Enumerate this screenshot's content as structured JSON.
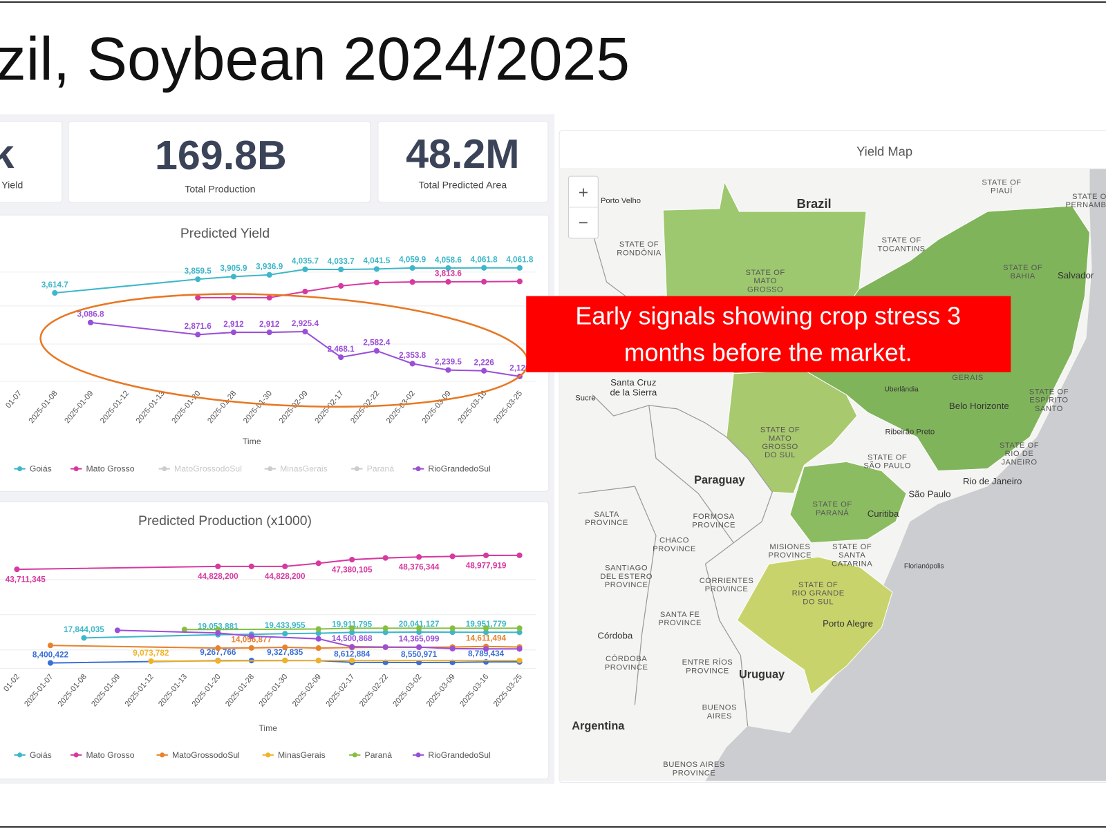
{
  "header": {
    "title": "zil, Soybean 2024/2025"
  },
  "kpis": [
    {
      "value": "k",
      "label": "l Yield"
    },
    {
      "value": "169.8B",
      "label": "Total Production"
    },
    {
      "value": "48.2M",
      "label": "Total Predicted Area"
    }
  ],
  "charts": [
    {
      "type": "line",
      "title": "Predicted Yield",
      "x_label": "Time",
      "categories": [
        "01-07",
        "2025-01-08",
        "2025-01-09",
        "2025-01-12",
        "2025-01-13",
        "2025-01-20",
        "2025-01-28",
        "2025-01-30",
        "2025-02-09",
        "2025-02-17",
        "2025-02-22",
        "2025-03-02",
        "2025-03-09",
        "2025-03-16",
        "2025-03-25"
      ],
      "ylim": [
        2000,
        4200
      ],
      "series": [
        {
          "name": "Goiás",
          "color": "#3db7c9",
          "x": [
            "2025-01-08",
            "2025-01-20",
            "2025-01-28",
            "2025-01-30",
            "2025-02-09",
            "2025-02-17",
            "2025-02-22",
            "2025-03-02",
            "2025-03-09",
            "2025-03-16",
            "2025-03-25"
          ],
          "values": [
            3614.7,
            3859.5,
            3905.9,
            3936.9,
            4035.7,
            4033.7,
            4041.5,
            4059.9,
            4058.6,
            4061.8,
            4061.8
          ],
          "value_labels": [
            "3,614.7",
            "3,859.5",
            "3,905.9",
            "3,936.9",
            "4,035.7",
            "4,033.7",
            "4,041.5",
            "4,059.9",
            "4,058.6",
            "4,061.8",
            "4,061.8"
          ]
        },
        {
          "name": "Mato Grosso",
          "color": "#d6399f",
          "x": [
            "2025-01-20",
            "2025-01-28",
            "2025-01-30",
            "2025-02-09",
            "2025-02-17",
            "2025-02-22",
            "2025-03-02",
            "2025-03-09",
            "2025-03-16",
            "2025-03-25"
          ],
          "values": [
            3530,
            3530,
            3530,
            3640,
            3740,
            3800,
            3810,
            3813.6,
            3815,
            3820
          ],
          "value_labels": [
            null,
            null,
            null,
            null,
            null,
            null,
            null,
            "3,813.6",
            null,
            null
          ]
        },
        {
          "name": "MatoGrossodoSul",
          "color": "#cccccc",
          "visible": false
        },
        {
          "name": "MinasGerais",
          "color": "#cccccc",
          "visible": false
        },
        {
          "name": "Paraná",
          "color": "#cccccc",
          "visible": false
        },
        {
          "name": "RioGrandedoSul",
          "color": "#9a4fd8",
          "x": [
            "2025-01-09",
            "2025-01-20",
            "2025-01-28",
            "2025-01-30",
            "2025-02-09",
            "2025-02-17",
            "2025-02-22",
            "2025-03-02",
            "2025-03-09",
            "2025-03-16",
            "2025-03-25"
          ],
          "values": [
            3086.8,
            2871.6,
            2912,
            2912,
            2925.4,
            2468.1,
            2582.4,
            2353.8,
            2239.5,
            2226,
            2126
          ],
          "value_labels": [
            "3,086.8",
            "2,871.6",
            "2,912",
            "2,912",
            "2,925.4",
            "2,468.1",
            "2,582.4",
            "2,353.8",
            "2,239.5",
            "2,226",
            "2,126"
          ]
        }
      ]
    },
    {
      "type": "line",
      "title": "Predicted Production (x1000)",
      "x_label": "Time",
      "categories": [
        "01-02",
        "2025-01-07",
        "2025-01-08",
        "2025-01-09",
        "2025-01-12",
        "2025-01-13",
        "2025-01-20",
        "2025-01-28",
        "2025-01-30",
        "2025-02-09",
        "2025-02-17",
        "2025-02-22",
        "2025-03-02",
        "2025-03-09",
        "2025-03-16",
        "2025-03-25"
      ],
      "ylim": [
        0,
        50000000
      ],
      "series": [
        {
          "color": "#3a6fd8",
          "x": [
            "2025-01-07",
            "2025-01-20",
            "2025-01-28",
            "2025-01-30",
            "2025-02-09",
            "2025-02-17",
            "2025-02-22",
            "2025-03-02",
            "2025-03-09",
            "2025-03-16",
            "2025-03-25"
          ],
          "values": [
            8400422,
            9267766,
            9300000,
            9327835,
            9300000,
            8612884,
            8600000,
            8550971,
            8600000,
            8789434,
            8800000
          ],
          "value_labels": [
            "8,400,422",
            "9,267,766",
            null,
            "9,327,835",
            null,
            "8,612,884",
            null,
            "8,550,971",
            null,
            "8,789,434",
            null
          ]
        },
        {
          "name": "Goiás",
          "color": "#3db7c9",
          "x": [
            "2025-01-08",
            "2025-01-20",
            "2025-01-28",
            "2025-01-30",
            "2025-02-09",
            "2025-02-17",
            "2025-02-22",
            "2025-03-02",
            "2025-03-09",
            "2025-03-16",
            "2025-03-25"
          ],
          "values": [
            17844035,
            19053881,
            19200000,
            19433955,
            19600000,
            19911795,
            19950000,
            20041127,
            20000000,
            19951779,
            19950000
          ],
          "value_labels": [
            "17,844,035",
            "19,053,881",
            null,
            "19,433,955",
            null,
            "19,911,795",
            null,
            "20,041,127",
            null,
            "19,951,779",
            null
          ]
        },
        {
          "name": "Mato Grosso",
          "color": "#d6399f",
          "label_position": "below",
          "x": [
            "01-02",
            "2025-01-20",
            "2025-01-28",
            "2025-01-30",
            "2025-02-09",
            "2025-02-17",
            "2025-02-22",
            "2025-03-02",
            "2025-03-09",
            "2025-03-16",
            "2025-03-25"
          ],
          "values": [
            43711345,
            44828200,
            44828200,
            44828200,
            46000000,
            47380105,
            48000000,
            48376344,
            48600000,
            48977919,
            49000000
          ],
          "value_labels": [
            "43,711,345",
            "44,828,200",
            null,
            "44,828,200",
            null,
            "47,380,105",
            null,
            "48,376,344",
            null,
            "48,977,919",
            null
          ]
        },
        {
          "name": "MatoGrossodoSul",
          "color": "#e8822c",
          "x": [
            "2025-01-07",
            "2025-01-20",
            "2025-01-28",
            "2025-01-30",
            "2025-02-09",
            "2025-02-17",
            "2025-02-22",
            "2025-03-02",
            "2025-03-09",
            "2025-03-16",
            "2025-03-25"
          ],
          "values": [
            15000000,
            14000000,
            14056877,
            14300000,
            14000000,
            14200000,
            14300000,
            14300000,
            14400000,
            14611494,
            14400000
          ],
          "value_labels": [
            null,
            null,
            "14,056,877",
            null,
            null,
            null,
            null,
            null,
            null,
            "14,611,494",
            null
          ]
        },
        {
          "name": "MinasGerais",
          "color": "#f2b227",
          "x": [
            "2025-01-12",
            "2025-01-20",
            "2025-01-30",
            "2025-02-09",
            "2025-02-17",
            "2025-03-25"
          ],
          "values": [
            9073782,
            9150000,
            9300000,
            9350000,
            9300000,
            9300000
          ],
          "value_labels": [
            "9,073,782",
            null,
            null,
            null,
            null,
            null
          ]
        },
        {
          "name": "Paraná",
          "color": "#86bf3f",
          "x": [
            "2025-01-13",
            "2025-01-20",
            "2025-02-09",
            "2025-02-17",
            "2025-02-22",
            "2025-03-02",
            "2025-03-09",
            "2025-03-16",
            "2025-03-25"
          ],
          "values": [
            21000000,
            21000000,
            21200000,
            21500000,
            21500000,
            21500000,
            21500000,
            21500000,
            21500000
          ]
        },
        {
          "name": "RioGrandedoSul",
          "color": "#9a4fd8",
          "x": [
            "2025-01-09",
            "2025-01-20",
            "2025-01-28",
            "2025-02-09",
            "2025-02-17",
            "2025-02-22",
            "2025-03-02",
            "2025-03-09",
            "2025-03-16",
            "2025-03-25"
          ],
          "values": [
            20700000,
            19700000,
            18500000,
            17500000,
            14500868,
            14400000,
            14365099,
            13800000,
            13700000,
            13700000
          ],
          "value_labels": [
            null,
            null,
            null,
            null,
            "14,500,868",
            null,
            "14,365,099",
            null,
            null,
            null
          ]
        }
      ]
    }
  ],
  "callout": {
    "lines": [
      "Early signals showing crop stress 3",
      "months before the market."
    ]
  },
  "map": {
    "title": "Yield Map",
    "zoom_in": "+",
    "zoom_out": "−",
    "labels": [
      [
        "Brazil"
      ],
      [
        "Porto Velho"
      ],
      [
        "STATE OF",
        "RONDÔNIA"
      ],
      [
        "STATE OF",
        "PIAUÍ"
      ],
      [
        "STATE OF",
        "PERNAMBUC"
      ],
      [
        "STATE OF",
        "TOCANTINS"
      ],
      [
        "STATE OF",
        "MATO",
        "GROSSO"
      ],
      [
        "STATE OF",
        "BAHIA"
      ],
      [
        "Salvador"
      ],
      [
        "Santa Cruz",
        "de la Sierra"
      ],
      [
        "Sucre"
      ],
      [
        "GERAIS"
      ],
      [
        "Uberlândia"
      ],
      [
        "Belo Horizonte"
      ],
      [
        "STATE OF",
        "ESPÍRITO",
        "SANTO"
      ],
      [
        "Ribeirão Preto"
      ],
      [
        "STATE OF",
        "MATO",
        "GROSSO",
        "DO SUL"
      ],
      [
        "STATE OF",
        "RIO DE",
        "JANEIRO"
      ],
      [
        "STATE OF",
        "SÃO PAULO"
      ],
      [
        "Paraguay"
      ],
      [
        "Rio de Janeiro"
      ],
      [
        "São Paulo"
      ],
      [
        "STATE OF",
        "PARANÁ"
      ],
      [
        "Curitiba"
      ],
      [
        "SALTA",
        "PROVINCE"
      ],
      [
        "FORMOSA",
        "PROVINCE"
      ],
      [
        "CHACO",
        "PROVINCE"
      ],
      [
        "MISIONES",
        "PROVINCE"
      ],
      [
        "STATE OF",
        "SANTA",
        "CATARINA"
      ],
      [
        "Florianópolis"
      ],
      [
        "SANTIAGO",
        "DEL ESTERO",
        "PROVINCE"
      ],
      [
        "CORRIENTES",
        "PROVINCE"
      ],
      [
        "STATE OF",
        "RIO GRANDE",
        "DO SUL"
      ],
      [
        "SANTA FE",
        "PROVINCE"
      ],
      [
        "Porto Alegre"
      ],
      [
        "Córdoba"
      ],
      [
        "CÓRDOBA",
        "PROVINCE"
      ],
      [
        "ENTRE RÍOS",
        "PROVINCE"
      ],
      [
        "Uruguay"
      ],
      [
        "BUENOS",
        "AIRES"
      ],
      [
        "Argentina"
      ],
      [
        "BUENOS AIRES",
        "PROVINCE"
      ]
    ]
  }
}
